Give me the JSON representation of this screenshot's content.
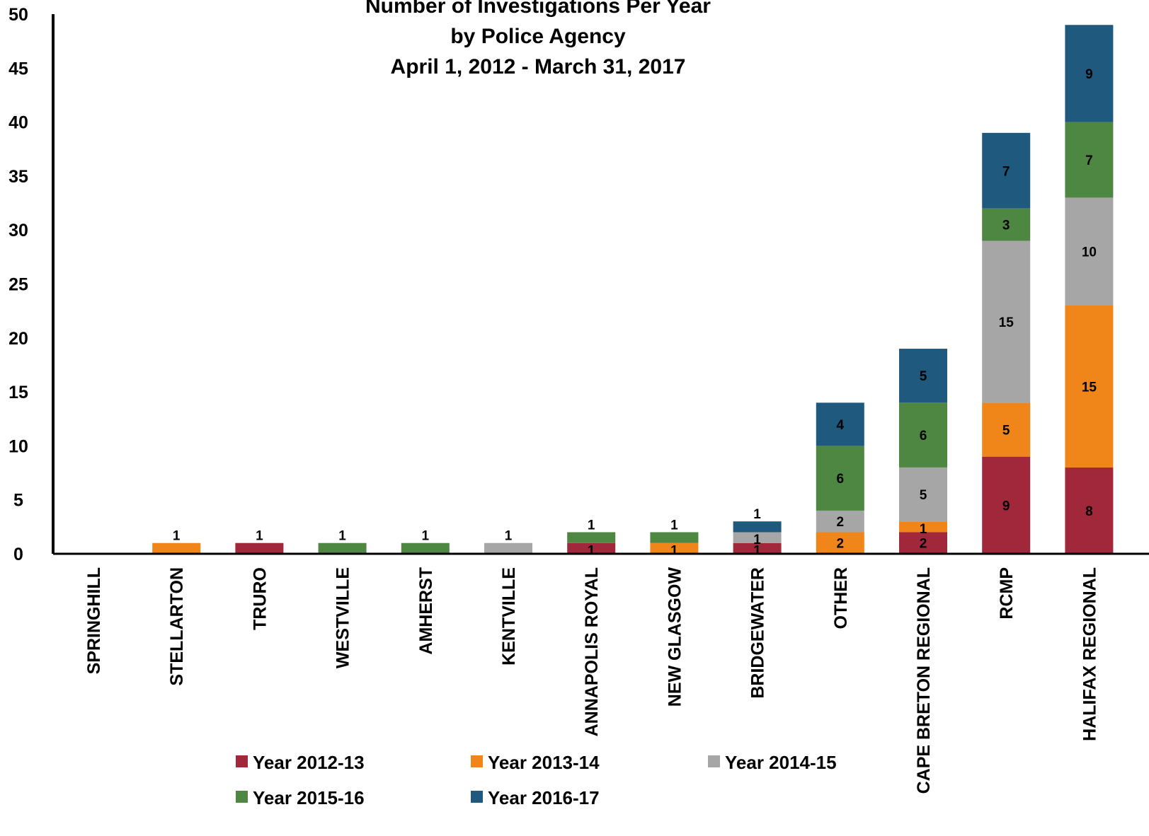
{
  "chart_data": {
    "type": "bar",
    "stacked": true,
    "title": [
      "Number of Investigations Per Year",
      "by Police Agency",
      "April 1, 2012 - March 31, 2017"
    ],
    "xlabel": "",
    "ylabel": "",
    "ylim": [
      0,
      50
    ],
    "yticks": [
      0,
      5,
      10,
      15,
      20,
      25,
      30,
      35,
      40,
      45,
      50
    ],
    "grid": false,
    "legend_position": "bottom",
    "categories": [
      "SPRINGHILL",
      "STELLARTON",
      "TRURO",
      "WESTVILLE",
      "AMHERST",
      "KENTVILLE",
      "ANNAPOLIS ROYAL",
      "NEW GLASGOW",
      "BRIDGEWATER",
      "OTHER",
      "CAPE BRETON REGIONAL",
      "RCMP",
      "HALIFAX REGIONAL"
    ],
    "series": [
      {
        "name": "Year 2012-13",
        "color": "#A0283A",
        "values": [
          0,
          0,
          1,
          0,
          0,
          0,
          1,
          0,
          1,
          0,
          2,
          9,
          8
        ]
      },
      {
        "name": "Year 2013-14",
        "color": "#F08519",
        "values": [
          0,
          1,
          0,
          0,
          0,
          0,
          0,
          1,
          0,
          2,
          1,
          5,
          15
        ]
      },
      {
        "name": "Year 2014-15",
        "color": "#A6A6A6",
        "values": [
          0,
          0,
          0,
          0,
          0,
          1,
          0,
          0,
          1,
          2,
          5,
          15,
          10
        ]
      },
      {
        "name": "Year 2015-16",
        "color": "#4E8742",
        "values": [
          0,
          0,
          0,
          1,
          1,
          0,
          1,
          1,
          0,
          6,
          6,
          3,
          7
        ]
      },
      {
        "name": "Year 2016-17",
        "color": "#1F5A7E",
        "values": [
          0,
          0,
          0,
          0,
          0,
          0,
          0,
          0,
          1,
          4,
          5,
          7,
          9
        ]
      }
    ]
  }
}
